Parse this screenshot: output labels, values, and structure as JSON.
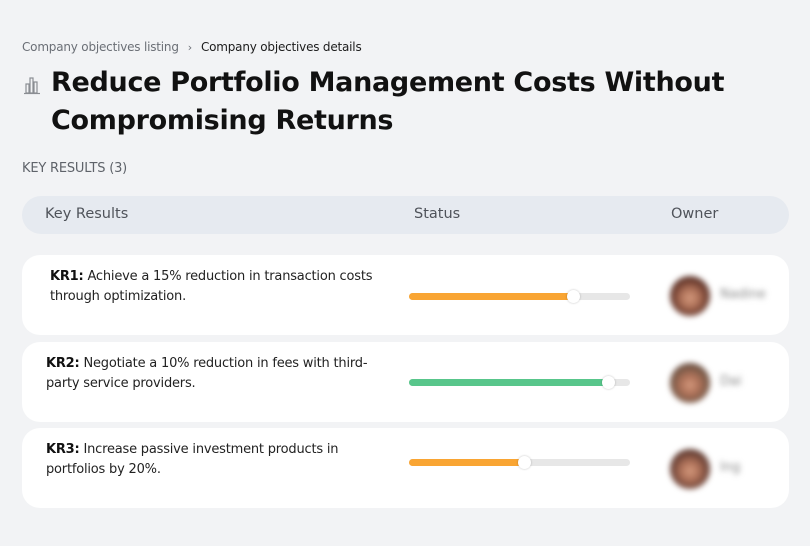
{
  "breadcrumb": {
    "items": [
      {
        "label": "Company objectives listing"
      },
      {
        "label": "Company objectives details"
      }
    ],
    "separator": "›"
  },
  "header": {
    "icon": "building-chart-icon",
    "title": "Reduce Portfolio Management Costs Without Compromising Returns"
  },
  "section": {
    "label": "KEY RESULTS (3)",
    "count": 3
  },
  "table": {
    "columns": [
      "Key Results",
      "Status",
      "Owner"
    ]
  },
  "colors": {
    "orange": "#f9a533",
    "green": "#58c68b",
    "track": "#e7e7e7"
  },
  "key_results": [
    {
      "code": "KR1:",
      "text": " Achieve a 15% reduction in transaction costs through optimization.",
      "progress": 74,
      "status_color": "#f9a533",
      "owner": {
        "name": "Nadine",
        "avatar_color": "#6b3b2e"
      }
    },
    {
      "code": "KR2:",
      "text": " Negotiate a 10% reduction in fees with third-party service providers.",
      "progress": 90,
      "status_color": "#58c68b",
      "owner": {
        "name": "Dai",
        "avatar_color": "#7a5a48"
      }
    },
    {
      "code": "KR3:",
      "text": " Increase passive investment products in portfolios by 20%.",
      "progress": 52,
      "status_color": "#f9a533",
      "owner": {
        "name": "Ing",
        "avatar_color": "#6e4438"
      }
    }
  ]
}
